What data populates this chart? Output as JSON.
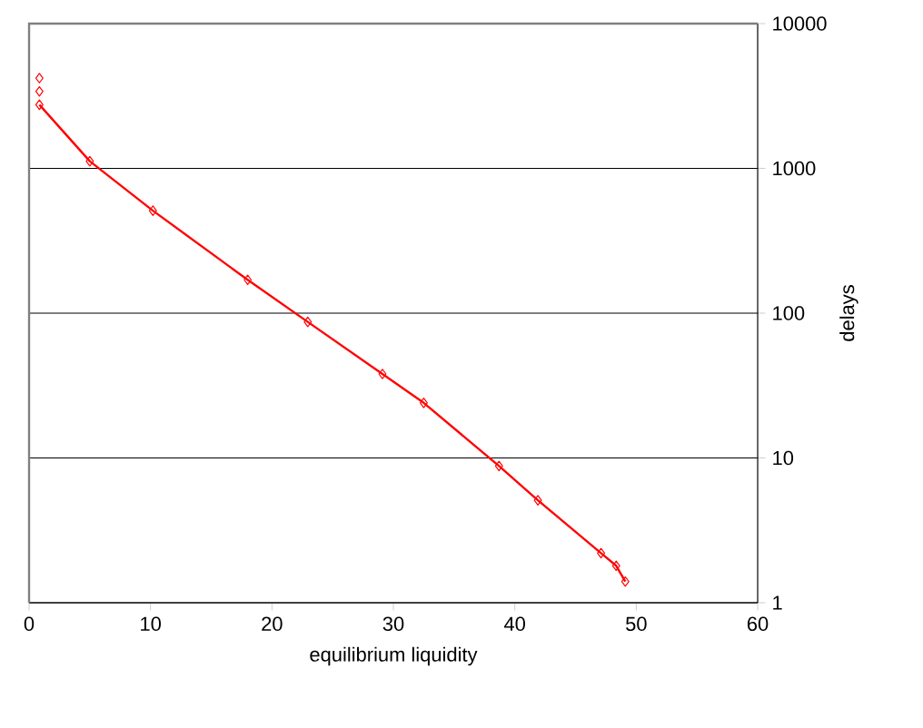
{
  "chart_data": {
    "type": "line",
    "xlabel": "equilibrium liquidity",
    "ylabel": "delays",
    "x": [
      0.85,
      5,
      10.2,
      18,
      22.95,
      29.1,
      32.5,
      38.7,
      41.9,
      47.1,
      48.35,
      49.1
    ],
    "series": [
      {
        "type": "scatter",
        "color": "#ff0000",
        "x": [
          0.85,
          0.85
        ],
        "values": [
          4200,
          3400
        ]
      },
      {
        "color": "#ff0000",
        "values": [
          2750,
          1120,
          510,
          170,
          87,
          38,
          24,
          8.8,
          5.1,
          2.2,
          1.8,
          1.4
        ]
      }
    ],
    "xlim": [
      0,
      60
    ],
    "xticks": [
      0,
      10,
      20,
      30,
      40,
      50,
      60
    ],
    "ylim": [
      1,
      10000
    ],
    "yticks": [
      1,
      10,
      100,
      1000,
      10000
    ],
    "log": "y",
    "grid": "y",
    "marker": "diamond",
    "line_style": "solid"
  }
}
